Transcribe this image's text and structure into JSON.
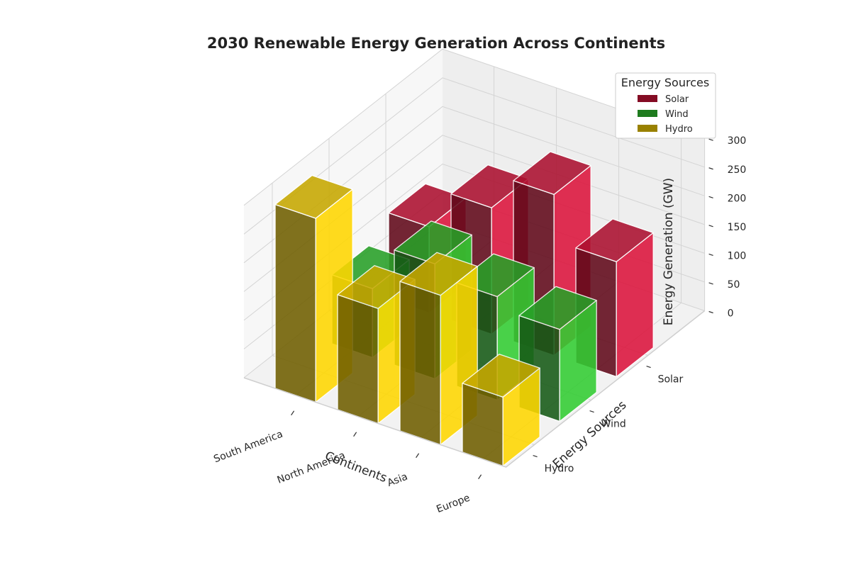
{
  "chart_data": {
    "type": "bar3d",
    "title": "2030 Renewable Energy Generation Across Continents",
    "xlabel": "Continents",
    "ylabel": "Energy Sources",
    "zlabel": "Energy Generation (GW)",
    "continents": [
      "South America",
      "North America",
      "Asia",
      "Europe"
    ],
    "sources": [
      "Solar",
      "Wind",
      "Hydro"
    ],
    "zlim": [
      0,
      300
    ],
    "zticks": [
      0,
      50,
      100,
      150,
      200,
      250,
      300
    ],
    "series": [
      {
        "name": "Solar",
        "color": "#DC143C",
        "values": [
          150,
          220,
          280,
          200
        ]
      },
      {
        "name": "Wind",
        "color": "#32CD32",
        "values": [
          120,
          200,
          180,
          160
        ]
      },
      {
        "name": "Hydro",
        "color": "#FFD700",
        "values": [
          320,
          200,
          260,
          120
        ]
      }
    ],
    "legend": {
      "title": "Energy Sources",
      "position": "top-right",
      "items": [
        "Solar",
        "Wind",
        "Hydro"
      ]
    },
    "grid": true
  }
}
